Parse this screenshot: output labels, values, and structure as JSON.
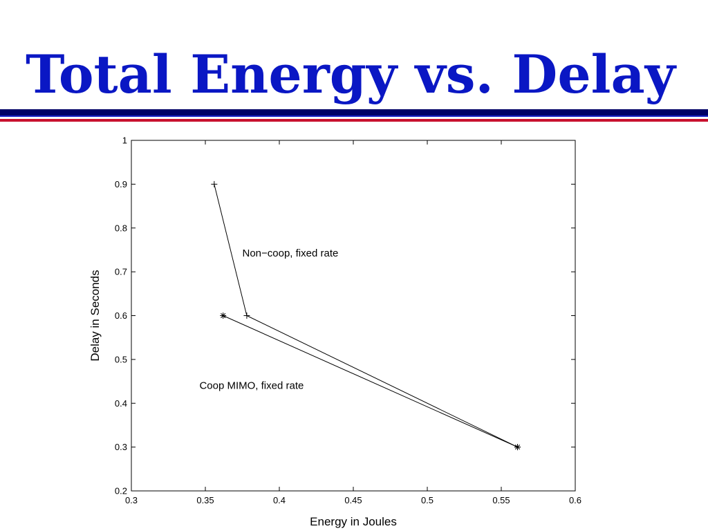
{
  "slide": {
    "title": "Total Energy vs. Delay",
    "colors": {
      "title": "#0a17c4",
      "rule_top": "#000066",
      "rule_bottom": "#c8102e"
    }
  },
  "chart_data": {
    "type": "line",
    "title": "",
    "xlabel": "Energy in Joules",
    "ylabel": "Delay in Seconds",
    "xlim": [
      0.3,
      0.6
    ],
    "ylim": [
      0.2,
      1.0
    ],
    "xticks": [
      0.3,
      0.35,
      0.4,
      0.45,
      0.5,
      0.55,
      0.6
    ],
    "yticks": [
      0.2,
      0.3,
      0.4,
      0.5,
      0.6,
      0.7,
      0.8,
      0.9,
      1.0
    ],
    "xtick_labels": [
      "0.3",
      "0.35",
      "0.4",
      "0.45",
      "0.5",
      "0.55",
      "0.6"
    ],
    "ytick_labels": [
      "0.2",
      "0.3",
      "0.4",
      "0.5",
      "0.6",
      "0.7",
      "0.8",
      "0.9",
      "1"
    ],
    "grid": false,
    "series": [
      {
        "marker": "plus",
        "color": "#000000",
        "x": [
          0.356,
          0.378,
          0.561
        ],
        "y": [
          0.9,
          0.6,
          0.3
        ]
      },
      {
        "marker": "star",
        "color": "#000000",
        "x": [
          0.362,
          0.561
        ],
        "y": [
          0.6,
          0.3
        ]
      }
    ],
    "annotations": [
      {
        "text": "Non−coop, fixed rate",
        "x": 0.375,
        "y": 0.735
      },
      {
        "text": "Coop MIMO, fixed rate",
        "x": 0.346,
        "y": 0.433
      }
    ]
  }
}
